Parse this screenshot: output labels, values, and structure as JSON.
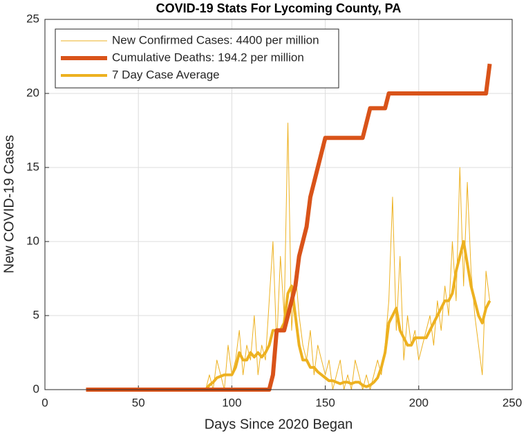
{
  "chart_data": {
    "type": "line",
    "title": "COVID-19 Stats For Lycoming County, PA",
    "xlabel": "Days Since 2020 Began",
    "ylabel": "New COVID-19 Cases",
    "x": [
      22,
      24,
      26,
      28,
      30,
      32,
      34,
      36,
      38,
      40,
      42,
      44,
      46,
      48,
      50,
      52,
      54,
      56,
      58,
      60,
      62,
      64,
      66,
      68,
      70,
      72,
      74,
      76,
      78,
      80,
      82,
      84,
      86,
      88,
      90,
      92,
      94,
      96,
      98,
      100,
      102,
      104,
      106,
      108,
      110,
      112,
      114,
      116,
      118,
      120,
      122,
      124,
      126,
      128,
      130,
      132,
      134,
      136,
      138,
      140,
      142,
      144,
      146,
      148,
      150,
      152,
      154,
      156,
      158,
      160,
      162,
      164,
      166,
      168,
      170,
      172,
      174,
      176,
      178,
      180,
      182,
      184,
      186,
      188,
      190,
      192,
      194,
      196,
      198,
      200,
      202,
      204,
      206,
      208,
      210,
      212,
      214,
      216,
      218,
      220,
      222,
      224,
      226,
      228,
      230,
      232,
      234,
      236,
      238
    ],
    "series": [
      {
        "name": "New Confirmed Cases: 4400 per million",
        "color": "#EDB120",
        "line_width": 1,
        "values": [
          0,
          0,
          0,
          0,
          0,
          0,
          0,
          0,
          0,
          0,
          0,
          0,
          0,
          0,
          0,
          0,
          0,
          0,
          0,
          0,
          0,
          0,
          0,
          0,
          0,
          0,
          0,
          0,
          0,
          0,
          0,
          0,
          0,
          1,
          0,
          2,
          1,
          0,
          3,
          1,
          2,
          4,
          1,
          3,
          2,
          5,
          1,
          3,
          2,
          6,
          10,
          3,
          9,
          5,
          18,
          4,
          8,
          5,
          3,
          2,
          4,
          1,
          3,
          2,
          1,
          2,
          0,
          1,
          2,
          0,
          1,
          0,
          2,
          1,
          0,
          1,
          0,
          1,
          2,
          1,
          3,
          6,
          13,
          4,
          9,
          2,
          5,
          3,
          4,
          2,
          3,
          4,
          5,
          3,
          6,
          4,
          7,
          5,
          10,
          6,
          15,
          7,
          14,
          8,
          5,
          3,
          1,
          8,
          6
        ]
      },
      {
        "name": "Cumulative Deaths: 194.2 per million",
        "color": "#D95319",
        "line_width": 6,
        "values": [
          0,
          0,
          0,
          0,
          0,
          0,
          0,
          0,
          0,
          0,
          0,
          0,
          0,
          0,
          0,
          0,
          0,
          0,
          0,
          0,
          0,
          0,
          0,
          0,
          0,
          0,
          0,
          0,
          0,
          0,
          0,
          0,
          0,
          0,
          0,
          0,
          0,
          0,
          0,
          0,
          0,
          0,
          0,
          0,
          0,
          0,
          0,
          0,
          0,
          0,
          1,
          4,
          4,
          4,
          5,
          6,
          7,
          9,
          10,
          11,
          13,
          14,
          15,
          16,
          17,
          17,
          17,
          17,
          17,
          17,
          17,
          17,
          17,
          17,
          17,
          18,
          19,
          19,
          19,
          19,
          19,
          20,
          20,
          20,
          20,
          20,
          20,
          20,
          20,
          20,
          20,
          20,
          20,
          20,
          20,
          20,
          20,
          20,
          20,
          20,
          20,
          20,
          20,
          20,
          20,
          20,
          20,
          20,
          22
        ]
      },
      {
        "name": "7 Day Case Average",
        "color": "#EDB120",
        "line_width": 4,
        "values": [
          0,
          0,
          0,
          0,
          0,
          0,
          0,
          0,
          0,
          0,
          0,
          0,
          0,
          0,
          0,
          0,
          0,
          0,
          0,
          0,
          0,
          0,
          0,
          0,
          0,
          0,
          0,
          0,
          0,
          0,
          0,
          0,
          0,
          0.3,
          0.5,
          0.8,
          0.9,
          1,
          1,
          1,
          1.5,
          2.5,
          2,
          2,
          2.5,
          2.2,
          2.5,
          2.2,
          2.5,
          3,
          4,
          4,
          4,
          4.5,
          6.5,
          7,
          5,
          3,
          2,
          2,
          1.5,
          1.5,
          1.2,
          1,
          0.8,
          0.6,
          0.6,
          0.5,
          0.4,
          0.5,
          0.5,
          0.4,
          0.5,
          0.5,
          0.3,
          0.2,
          0.3,
          0.5,
          0.8,
          1.5,
          2.5,
          4.5,
          5,
          5.5,
          4,
          3.5,
          3,
          3,
          3.5,
          3.5,
          3.5,
          3.5,
          4,
          4.5,
          5,
          5.5,
          6,
          6,
          6.5,
          8,
          9,
          10,
          8.5,
          7,
          6,
          5,
          4.5,
          5.5,
          6
        ]
      }
    ],
    "xlim": [
      0,
      250
    ],
    "xticks": [
      0,
      50,
      100,
      150,
      200,
      250
    ],
    "ylim": [
      0,
      25
    ],
    "yticks": [
      0,
      5,
      10,
      15,
      20,
      25
    ],
    "grid": true,
    "legend": "top-left"
  }
}
